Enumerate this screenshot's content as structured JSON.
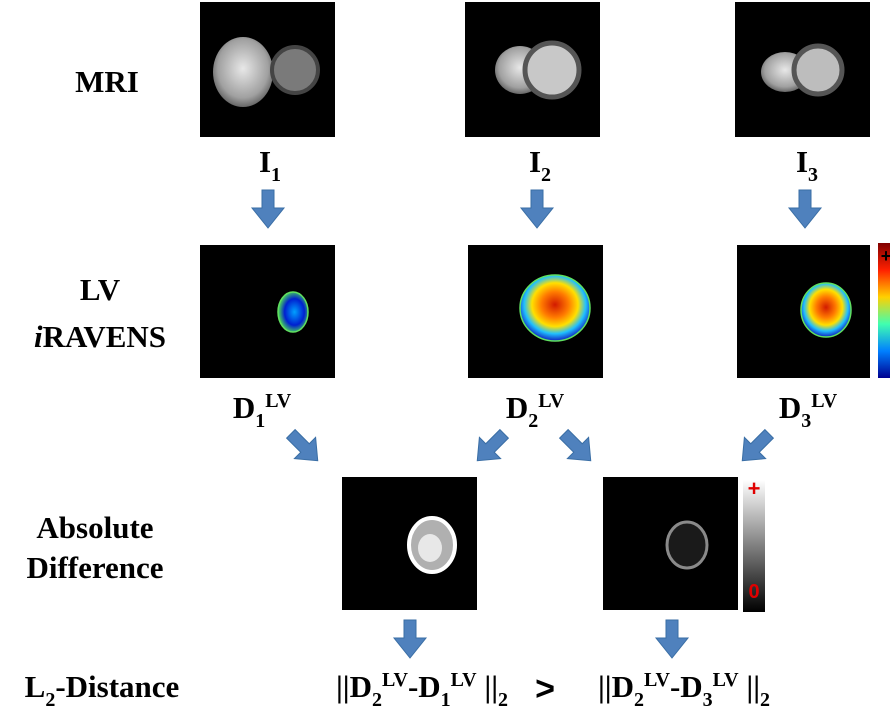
{
  "row_labels": [
    [
      {
        "text": "MRI",
        "style": "normal"
      }
    ],
    [
      {
        "text": "LV",
        "style": "normal"
      }
    ],
    [
      {
        "text": "i",
        "style": "italic"
      },
      {
        "text": "RAVENS",
        "style": "normal"
      }
    ],
    [
      {
        "text": "Absolute",
        "style": "normal"
      }
    ],
    [
      {
        "text": "Difference",
        "style": "normal"
      }
    ],
    [
      {
        "text": "L",
        "style": "normal"
      },
      {
        "text": "2",
        "style": "sub"
      },
      {
        "text": "-Distance",
        "style": "normal"
      }
    ]
  ],
  "image_labels": [
    [
      {
        "text": "I",
        "style": "normal"
      },
      {
        "text": "1",
        "style": "sub"
      }
    ],
    [
      {
        "text": "I",
        "style": "normal"
      },
      {
        "text": "2",
        "style": "sub"
      }
    ],
    [
      {
        "text": "I",
        "style": "normal"
      },
      {
        "text": "3",
        "style": "sub"
      }
    ]
  ],
  "ravens_labels": [
    [
      {
        "text": "D",
        "style": "normal"
      },
      {
        "text": "1",
        "style": "sub"
      },
      {
        "text": "LV",
        "style": "sup"
      }
    ],
    [
      {
        "text": "D",
        "style": "normal"
      },
      {
        "text": "2",
        "style": "sub"
      },
      {
        "text": "LV",
        "style": "sup"
      }
    ],
    [
      {
        "text": "D",
        "style": "normal"
      },
      {
        "text": "3",
        "style": "sub"
      },
      {
        "text": "LV",
        "style": "sup"
      }
    ]
  ],
  "distances": {
    "left": [
      {
        "text": "||D",
        "style": "normal"
      },
      {
        "text": "2",
        "style": "sub"
      },
      {
        "text": "LV",
        "style": "sup"
      },
      {
        "text": "-D",
        "style": "normal"
      },
      {
        "text": "1",
        "style": "sub"
      },
      {
        "text": "LV",
        "style": "sup"
      },
      {
        "text": " ||",
        "style": "normal"
      },
      {
        "text": "2",
        "style": "sub"
      }
    ],
    "comparison": ">",
    "right": [
      {
        "text": "||D",
        "style": "normal"
      },
      {
        "text": "2",
        "style": "sub"
      },
      {
        "text": "LV",
        "style": "sup"
      },
      {
        "text": "-D",
        "style": "normal"
      },
      {
        "text": "3",
        "style": "sub"
      },
      {
        "text": "LV",
        "style": "sup"
      },
      {
        "text": " ||",
        "style": "normal"
      },
      {
        "text": "2",
        "style": "sub"
      }
    ]
  },
  "colorbars": {
    "ravens_max": "+",
    "difference_max": "+",
    "difference_min": "0"
  }
}
